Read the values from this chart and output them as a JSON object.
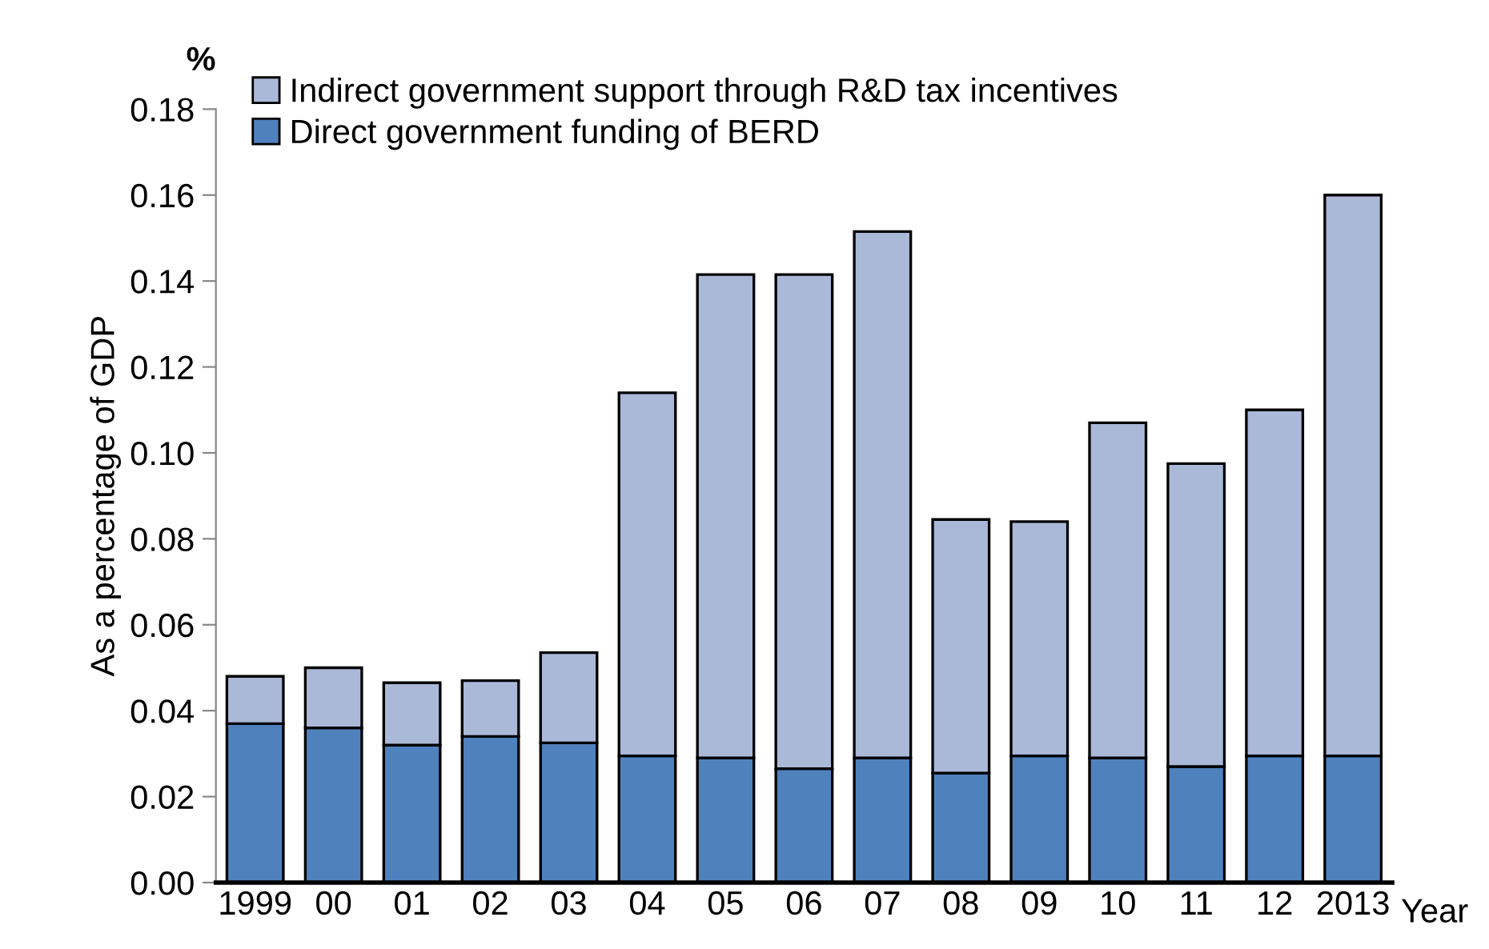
{
  "chart_data": {
    "type": "bar",
    "stacked": true,
    "ylabel": "As a percentage of GDP",
    "xlabel": "Year",
    "annotations": [
      "%"
    ],
    "categories": [
      "1999",
      "00",
      "01",
      "02",
      "03",
      "04",
      "05",
      "06",
      "07",
      "08",
      "09",
      "10",
      "11",
      "12",
      "2013"
    ],
    "series": [
      {
        "name": "Direct government funding of BERD",
        "color": "#4f81bd",
        "values": [
          0.037,
          0.036,
          0.032,
          0.034,
          0.0325,
          0.0295,
          0.029,
          0.0265,
          0.029,
          0.0255,
          0.0295,
          0.029,
          0.027,
          0.0295,
          0.0295
        ]
      },
      {
        "name": "Indirect government support through R&D tax incentives",
        "color": "#abb9d8",
        "values": [
          0.011,
          0.014,
          0.0145,
          0.013,
          0.021,
          0.0845,
          0.1125,
          0.115,
          0.1225,
          0.059,
          0.0545,
          0.078,
          0.0705,
          0.0805,
          0.1305
        ]
      }
    ],
    "ylim": [
      0,
      0.18
    ],
    "yticks": [
      {
        "value": 0,
        "label": "0.00"
      },
      0.02,
      0.04,
      0.06,
      0.08,
      {
        "value": 0.1,
        "label": "0.10"
      },
      0.12,
      0.14,
      0.16,
      0.18
    ],
    "grid": false,
    "legend": "top"
  }
}
